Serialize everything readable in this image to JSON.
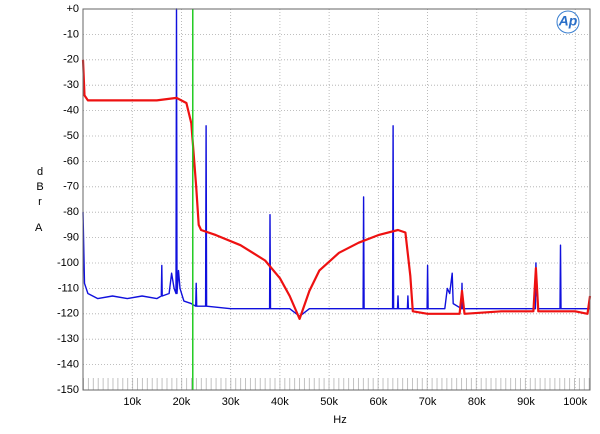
{
  "chart_data": {
    "type": "line",
    "xlabel": "Hz",
    "ylabel": "dBr",
    "ylabel_unit": "A",
    "logo": "Ap",
    "xlim": [
      0,
      103000
    ],
    "ylim": [
      -150,
      0
    ],
    "xticks": [
      {
        "value": 10000,
        "label": "10k"
      },
      {
        "value": 20000,
        "label": "20k"
      },
      {
        "value": 30000,
        "label": "30k"
      },
      {
        "value": 40000,
        "label": "40k"
      },
      {
        "value": 50000,
        "label": "50k"
      },
      {
        "value": 60000,
        "label": "60k"
      },
      {
        "value": 70000,
        "label": "70k"
      },
      {
        "value": 80000,
        "label": "80k"
      },
      {
        "value": 90000,
        "label": "90k"
      },
      {
        "value": 100000,
        "label": "100k"
      }
    ],
    "yticks": [
      {
        "value": 0,
        "label": "+0"
      },
      -10,
      -20,
      -30,
      -40,
      -50,
      -60,
      -70,
      -80,
      -90,
      -100,
      -110,
      -120,
      -130,
      -140,
      -150
    ],
    "grid": true,
    "marker_x": 22300,
    "marker_color": "#22cc22",
    "series": [
      {
        "color": "#1010dd",
        "x": [
          0,
          300,
          1000,
          3000,
          6000,
          9000,
          12000,
          15000,
          15900,
          16000,
          16100,
          17500,
          18000,
          18500,
          18900,
          19000,
          19100,
          19400,
          19700,
          20500,
          22000,
          22900,
          23000,
          23100,
          24900,
          25000,
          25100,
          30000,
          37900,
          38000,
          38100,
          42000,
          44000,
          46000,
          56900,
          57000,
          57100,
          62900,
          63000,
          63100,
          63900,
          64000,
          64100,
          65900,
          66000,
          66100,
          69900,
          70000,
          70100,
          73500,
          74000,
          74500,
          75000,
          75200,
          76900,
          77000,
          77100,
          85000,
          91900,
          92000,
          92200,
          92500,
          96900,
          97000,
          97100,
          103000
        ],
        "values": [
          -80,
          -108,
          -112,
          -114,
          -113,
          -114,
          -113,
          -114,
          -113,
          -101,
          -113,
          -112,
          -104,
          -110,
          -112,
          0,
          -112,
          -103,
          -110,
          -115,
          -116,
          -117,
          -108,
          -117,
          -117,
          -46,
          -117,
          -118,
          -118,
          -81,
          -118,
          -118,
          -121,
          -118,
          -118,
          -74,
          -118,
          -118,
          -46,
          -118,
          -118,
          -113,
          -118,
          -118,
          -113,
          -118,
          -118,
          -101,
          -118,
          -118,
          -110,
          -112,
          -104,
          -116,
          -118,
          -108,
          -118,
          -118,
          -118,
          -100,
          -112,
          -118,
          -118,
          -93,
          -118,
          -118
        ]
      },
      {
        "color": "#ee1111",
        "x": [
          0,
          300,
          1000,
          5000,
          10000,
          15000,
          19000,
          21000,
          22000,
          23000,
          23500,
          24000,
          27000,
          32000,
          37000,
          40000,
          42000,
          44000,
          46000,
          48000,
          52000,
          56000,
          60000,
          64000,
          65500,
          66500,
          67000,
          70000,
          76500,
          77000,
          77500,
          85000,
          91500,
          92000,
          92500,
          100000,
          102500,
          103000
        ],
        "values": [
          -20,
          -34,
          -36,
          -36,
          -36,
          -36,
          -35,
          -37,
          -45,
          -70,
          -85,
          -87,
          -89,
          -93,
          -99,
          -106,
          -113,
          -122,
          -111,
          -103,
          -96,
          -92,
          -89,
          -87,
          -88,
          -105,
          -119,
          -120,
          -120,
          -111,
          -120,
          -119,
          -119,
          -102,
          -119,
          -119,
          -120,
          -113
        ]
      }
    ]
  }
}
